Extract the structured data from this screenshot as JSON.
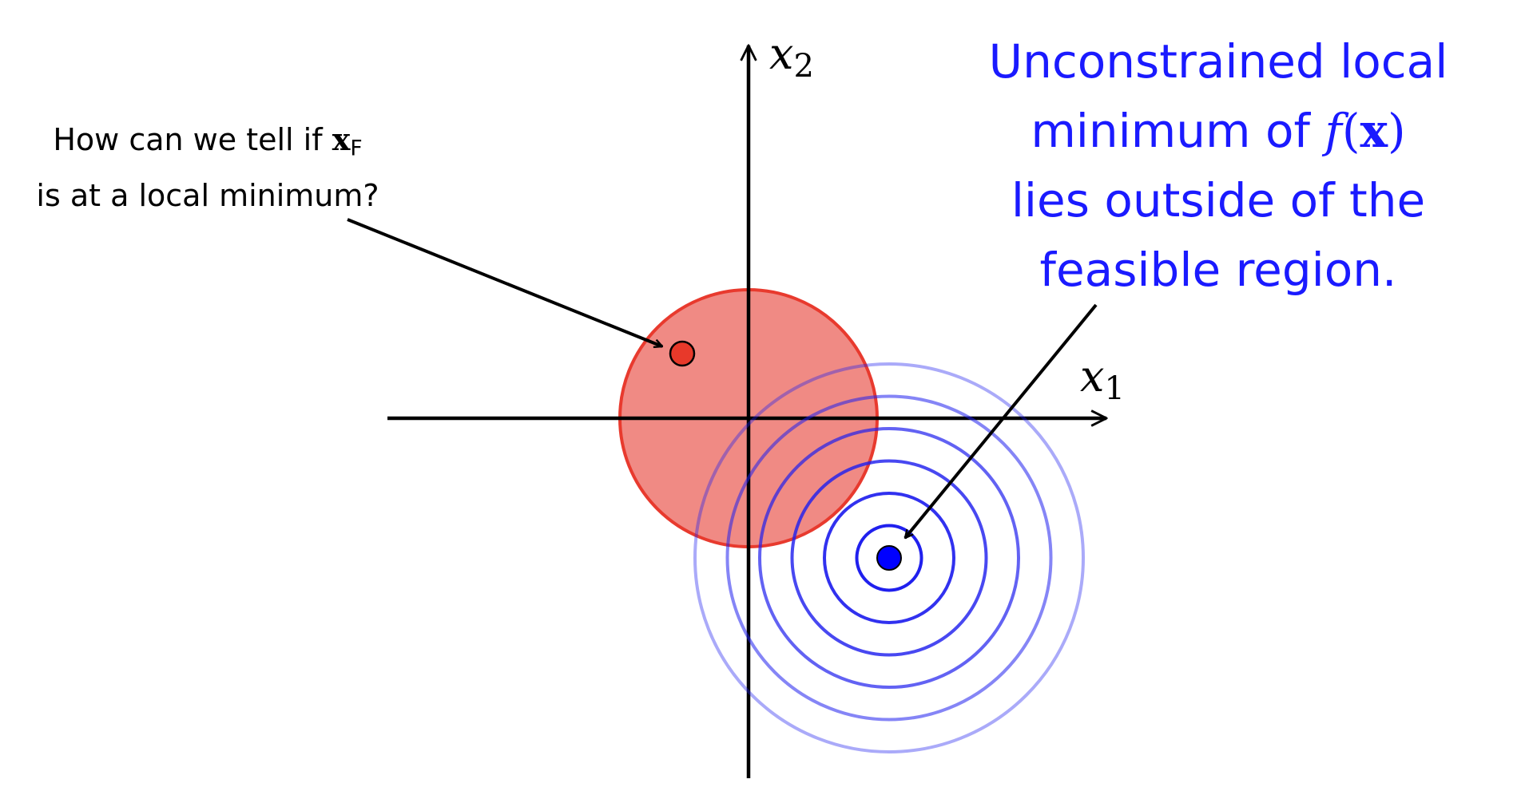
{
  "axes": {
    "x_label": "x",
    "x_subscript": "1",
    "y_label": "x",
    "y_subscript": "2"
  },
  "left_note": {
    "line1_pre": "How can we tell if ",
    "var": "x",
    "var_sub": "F",
    "line2": "is at a local minimum?"
  },
  "right_note": {
    "line1": "Unconstrained local",
    "line2_pre": "minimum of ",
    "f": "f",
    "paren_open": "(",
    "x": "x",
    "paren_close": ")",
    "line3": "lies outside of the",
    "line4": "feasible region."
  },
  "colors": {
    "feasible_fill": "#f08a84",
    "feasible_stroke": "#e83a2e",
    "feasible_point": "#e8392a",
    "contour_stroke": "#2020ee",
    "minimum_point": "#0000ff",
    "axis": "#000000",
    "annotation_text_blue": "#1a1aff"
  },
  "contour_count": 6
}
